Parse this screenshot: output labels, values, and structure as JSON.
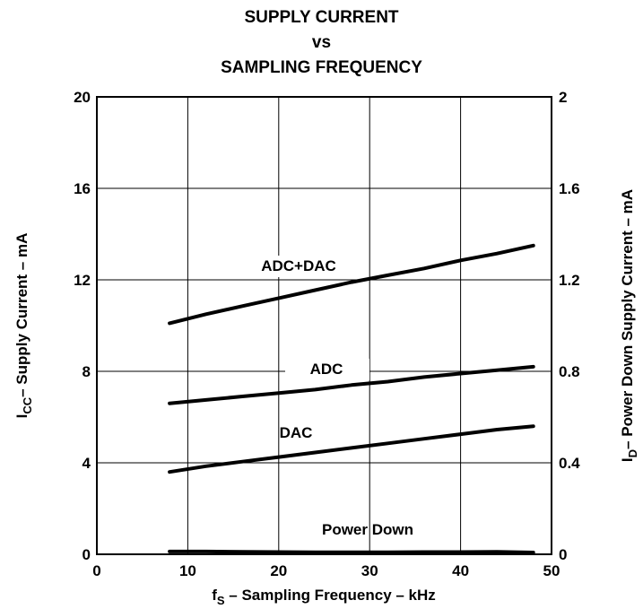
{
  "title": {
    "line1": "SUPPLY CURRENT",
    "line2": "vs",
    "line3": "SAMPLING FREQUENCY"
  },
  "chart_data": {
    "type": "line",
    "title": "SUPPLY CURRENT vs SAMPLING FREQUENCY",
    "xlabel": {
      "pre": "f",
      "sub": "S",
      "post": " – Sampling Frequency – kHz"
    },
    "ylabel": {
      "pre": "I",
      "sub": "CC",
      "post": "– Supply Current – mA"
    },
    "y2label": {
      "pre": "I",
      "sub": "D",
      "post": "– Power Down Supply Current – mA"
    },
    "xlim": [
      0,
      50
    ],
    "ylim": [
      0,
      20
    ],
    "y2lim": [
      0,
      2
    ],
    "xticks": [
      "0",
      "10",
      "20",
      "30",
      "40",
      "50"
    ],
    "yticks": [
      "0",
      "4",
      "8",
      "12",
      "16",
      "20"
    ],
    "y2ticks": [
      "0",
      "0.4",
      "0.8",
      "1.2",
      "1.6",
      "2"
    ],
    "grid": true,
    "series": [
      {
        "name": "ADC+DAC",
        "axis": "left",
        "x": [
          8,
          12,
          16,
          20,
          24,
          28,
          32,
          36,
          40,
          44,
          48
        ],
        "y": [
          10.1,
          10.5,
          10.85,
          11.2,
          11.55,
          11.9,
          12.2,
          12.5,
          12.85,
          13.15,
          13.5
        ]
      },
      {
        "name": "ADC",
        "axis": "left",
        "x": [
          8,
          12,
          16,
          20,
          24,
          28,
          32,
          36,
          40,
          44,
          48
        ],
        "y": [
          6.6,
          6.75,
          6.9,
          7.05,
          7.2,
          7.4,
          7.55,
          7.75,
          7.9,
          8.05,
          8.2
        ]
      },
      {
        "name": "DAC",
        "axis": "left",
        "x": [
          8,
          12,
          16,
          20,
          24,
          28,
          32,
          36,
          40,
          44,
          48
        ],
        "y": [
          3.6,
          3.85,
          4.05,
          4.25,
          4.45,
          4.65,
          4.85,
          5.05,
          5.25,
          5.45,
          5.6
        ]
      },
      {
        "name": "Power Down",
        "axis": "right",
        "x": [
          8,
          12,
          16,
          20,
          24,
          28,
          32,
          36,
          40,
          44,
          48
        ],
        "y": [
          0.012,
          0.012,
          0.011,
          0.01,
          0.009,
          0.009,
          0.009,
          0.01,
          0.01,
          0.011,
          0.008
        ]
      }
    ]
  }
}
